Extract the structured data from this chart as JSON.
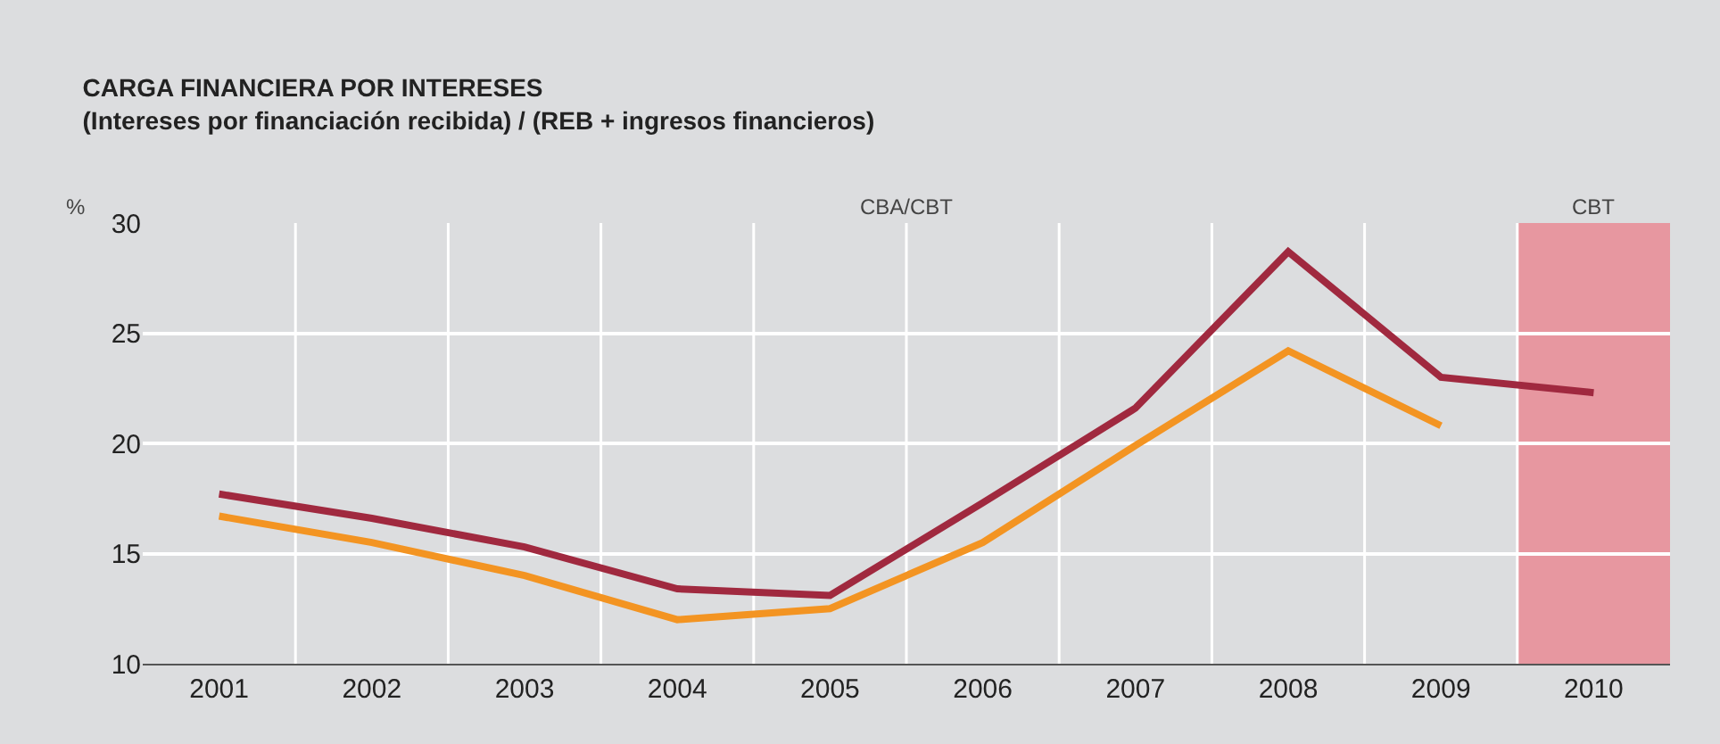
{
  "chart_data": {
    "type": "line",
    "title": "CARGA FINANCIERA POR INTERESES",
    "subtitle": "(Intereses por financiación recibida) / (REB + ingresos financieros)",
    "ylabel": "%",
    "categories": [
      "2001",
      "2002",
      "2003",
      "2004",
      "2005",
      "2006",
      "2007",
      "2008",
      "2009",
      "2010"
    ],
    "series": [
      {
        "color": "#a0293f",
        "values": [
          17.7,
          16.6,
          15.3,
          13.4,
          13.1,
          17.3,
          21.6,
          28.7,
          23.0,
          22.3
        ]
      },
      {
        "color": "#f39422",
        "values": [
          16.7,
          15.5,
          14.0,
          12.0,
          12.5,
          15.5,
          19.9,
          24.2,
          20.8,
          null
        ]
      }
    ],
    "ylim": [
      10,
      30
    ],
    "yticks": [
      10,
      15,
      20,
      25,
      30
    ],
    "grid": true,
    "marker": "none",
    "line_style": "solid",
    "bands": [
      {
        "axis": "x",
        "from": "2010",
        "to": "2010",
        "label": "CBT",
        "color": "#e797a0"
      }
    ],
    "annotations": [
      "CBA/CBT"
    ]
  }
}
